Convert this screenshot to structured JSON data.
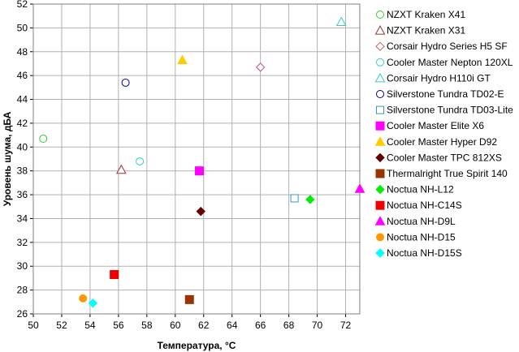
{
  "chart_data": {
    "type": "scatter",
    "title": "",
    "xlabel": "Температура, °C",
    "ylabel": "Уровень шума, дБА",
    "xlim": [
      50,
      73
    ],
    "ylim": [
      26,
      52
    ],
    "xticks": [
      50,
      52,
      54,
      56,
      58,
      60,
      62,
      64,
      66,
      68,
      70,
      72
    ],
    "yticks": [
      26,
      28,
      30,
      32,
      34,
      36,
      38,
      40,
      42,
      44,
      46,
      48,
      50,
      52
    ],
    "grid": true,
    "legend_position": "right",
    "series": [
      {
        "name": "NZXT Kraken X41",
        "marker": "circle-open",
        "color": "#33cc33",
        "x": 50.7,
        "y": 40.7
      },
      {
        "name": "NZXT Kraken X31",
        "marker": "triangle-open",
        "color": "#993333",
        "x": 56.2,
        "y": 38.1
      },
      {
        "name": "Corsair Hydro Series H5 SF",
        "marker": "diamond-open",
        "color": "#cc5566",
        "x": 66.0,
        "y": 46.7
      },
      {
        "name": "Cooler Master Nepton 120XL",
        "marker": "circle-open",
        "color": "#33cccc",
        "x": 57.5,
        "y": 38.8
      },
      {
        "name": "Corsair Hydro H110i GT",
        "marker": "triangle-open",
        "color": "#33cccc",
        "x": 71.7,
        "y": 50.5
      },
      {
        "name": "Silverstone Tundra TD02-E",
        "marker": "circle-open",
        "color": "#000099",
        "x": 56.5,
        "y": 45.4
      },
      {
        "name": "Silverstone Tundra TD03-Lite",
        "marker": "square-open",
        "color": "#3399cc",
        "x": 68.4,
        "y": 35.7
      },
      {
        "name": "Cooler Master Elite X6",
        "marker": "square",
        "color": "#ff00ff",
        "x": 61.7,
        "y": 38.0
      },
      {
        "name": "Cooler Master Hyper D92",
        "marker": "triangle",
        "color": "#ffcc00",
        "x": 60.5,
        "y": 47.3
      },
      {
        "name": "Cooler Master TPC 812XS",
        "marker": "diamond",
        "color": "#660000",
        "x": 61.8,
        "y": 34.6
      },
      {
        "name": "Thermalright True Spirit 140",
        "marker": "square",
        "color": "#993300",
        "x": 61.0,
        "y": 27.2
      },
      {
        "name": "Noctua NH-L12",
        "marker": "diamond",
        "color": "#00ee00",
        "x": 69.5,
        "y": 35.6
      },
      {
        "name": "Noctua NH-C14S",
        "marker": "square",
        "color": "#ee0000",
        "x": 55.7,
        "y": 29.3
      },
      {
        "name": "Noctua NH-D9L",
        "marker": "triangle",
        "color": "#ff00ff",
        "x": 73.0,
        "y": 36.5
      },
      {
        "name": "Noctua NH-D15",
        "marker": "circle",
        "color": "#ff9900",
        "x": 53.5,
        "y": 27.3
      },
      {
        "name": "Noctua NH-D15S",
        "marker": "diamond",
        "color": "#00ffff",
        "x": 54.2,
        "y": 26.9
      }
    ]
  }
}
